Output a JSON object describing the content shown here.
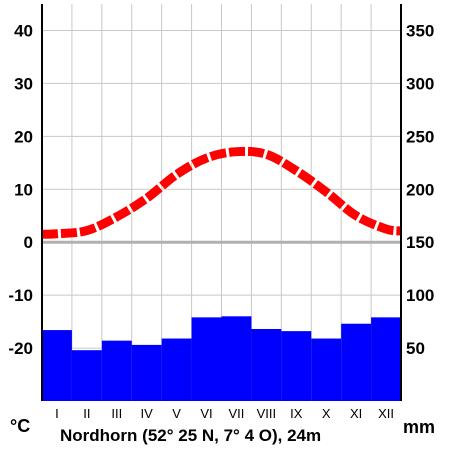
{
  "chart_data": {
    "type": "climate-diagram",
    "station": "Nordhorn  (52° 25 N, 7° 4 O), 24m",
    "temp_unit": "°C",
    "precip_unit": "mm",
    "months": [
      "I",
      "II",
      "III",
      "IV",
      "V",
      "VI",
      "VII",
      "VIII",
      "IX",
      "X",
      "XI",
      "XII"
    ],
    "temp_ticks": [
      "40",
      "30",
      "20",
      "10",
      "0",
      "-10",
      "-20"
    ],
    "precip_ticks": [
      "350",
      "300",
      "250",
      "200",
      "150",
      "100",
      "50"
    ],
    "temperature_c": [
      1.6,
      2.2,
      4.8,
      8.3,
      12.8,
      15.9,
      17.1,
      16.6,
      13.5,
      9.5,
      5.0,
      2.5
    ],
    "precipitation_mm": [
      67,
      48,
      57,
      53,
      59,
      79,
      80,
      68,
      66,
      59,
      73,
      79
    ],
    "temp_range_c": [
      -30,
      45
    ],
    "precip_range_mm": [
      0,
      375
    ],
    "colors": {
      "temperature": "#ff0000",
      "precipitation": "#0000ff",
      "zero_line": "#b0b0b0",
      "grid": "#c8c8c8"
    }
  }
}
